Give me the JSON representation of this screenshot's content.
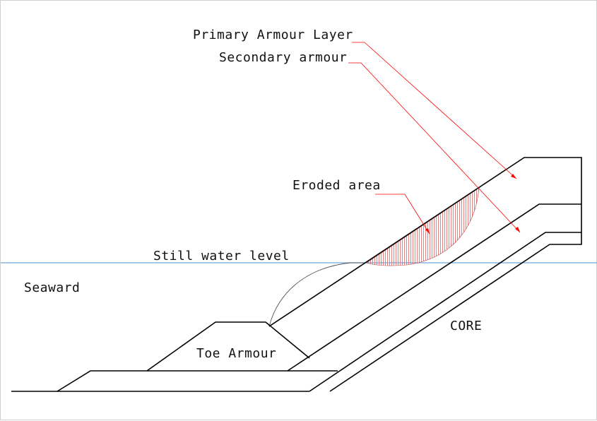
{
  "diagram": {
    "labels": {
      "primary_armour": "Primary Armour Layer",
      "secondary_armour": "Secondary armour",
      "eroded_area": "Eroded area",
      "still_water_level": "Still water level",
      "seaward": "Seaward",
      "toe_armour": "Toe Armour",
      "core": "CORE"
    },
    "colors": {
      "structure_line": "#000000",
      "leader_line": "#ff0000",
      "water_line": "#6fa8dc",
      "erosion_hatch": "#e06060",
      "erosion_arc": "#555555"
    }
  }
}
